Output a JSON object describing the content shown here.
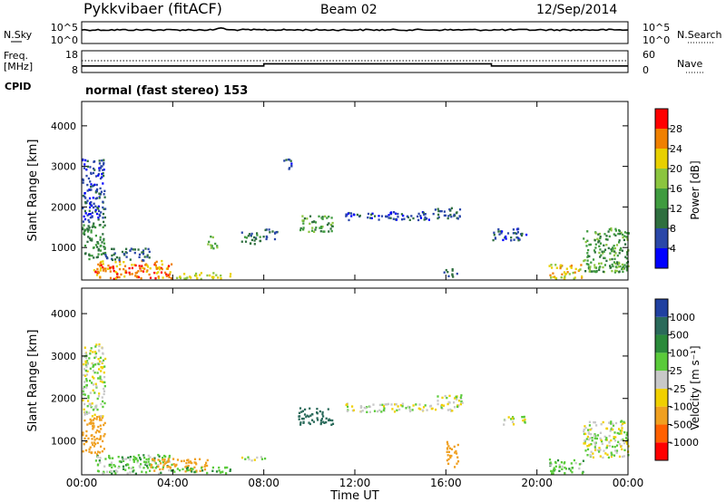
{
  "header": {
    "title": "Pykkvibaer (fitACF)",
    "beam": "Beam 02",
    "date": "12/Sep/2014"
  },
  "sky_panel": {
    "left_label": "N.Sky",
    "left_ticks": [
      "10^5",
      "10^0"
    ],
    "right_ticks": [
      "10^5",
      "10^0"
    ],
    "right_label": "N.Search"
  },
  "freq_panel": {
    "left_label_1": "Freq.",
    "left_label_2": "[MHz]",
    "left_ticks": [
      "18",
      "8"
    ],
    "right_ticks": [
      "60",
      "0"
    ],
    "right_label": "Nave",
    "freq_values": [
      11,
      11,
      11,
      11,
      11,
      11,
      11,
      11,
      11,
      11,
      11,
      11,
      11,
      11,
      11,
      11,
      12,
      12,
      12,
      12,
      12,
      12,
      12,
      12,
      12,
      12,
      12,
      12,
      12,
      12,
      12,
      12,
      12,
      12,
      12,
      12,
      11,
      11,
      11,
      11,
      11,
      11,
      11,
      11,
      11,
      11,
      11,
      11
    ],
    "nave_dotted_value": 38
  },
  "cpid": {
    "label": "CPID",
    "text": "normal (fast stereo) 153"
  },
  "x_axis": {
    "ticks": [
      "00:00",
      "04:00",
      "08:00",
      "12:00",
      "16:00",
      "20:00",
      "00:00"
    ],
    "label": "Time UT"
  },
  "chart_data": [
    {
      "type": "heatmap",
      "name": "power",
      "ylabel": "Slant Range [km]",
      "yticks": [
        "4000",
        "3000",
        "2000",
        "1000"
      ],
      "ylim": [
        200,
        4600
      ],
      "xlim_hours": [
        0,
        24
      ],
      "colorbar": {
        "label": "Power [dB]",
        "ticks": [
          "28",
          "24",
          "20",
          "16",
          "12",
          "8",
          "4"
        ],
        "colors": [
          "#0000ff",
          "#2a47a8",
          "#2f6f3f",
          "#3f9b3f",
          "#8bc53f",
          "#e8d000",
          "#f08000",
          "#ff0000"
        ]
      },
      "regions": [
        {
          "t": [
            0.0,
            1.0
          ],
          "r": [
            700,
            1600
          ],
          "v": 12
        },
        {
          "t": [
            0.0,
            1.0
          ],
          "r": [
            1600,
            3200
          ],
          "v": 6
        },
        {
          "t": [
            0.5,
            4.0
          ],
          "r": [
            250,
            700
          ],
          "v": 26
        },
        {
          "t": [
            1.0,
            3.0
          ],
          "r": [
            700,
            1000
          ],
          "v": 8
        },
        {
          "t": [
            4.0,
            6.5
          ],
          "r": [
            250,
            400
          ],
          "v": 20
        },
        {
          "t": [
            5.5,
            6.0
          ],
          "r": [
            1000,
            1300
          ],
          "v": 16
        },
        {
          "t": [
            7.0,
            8.0
          ],
          "r": [
            1100,
            1400
          ],
          "v": 10
        },
        {
          "t": [
            8.0,
            8.6
          ],
          "r": [
            1200,
            1500
          ],
          "v": 8
        },
        {
          "t": [
            9.5,
            11.0
          ],
          "r": [
            1400,
            1800
          ],
          "v": 14
        },
        {
          "t": [
            8.8,
            9.2
          ],
          "r": [
            2900,
            3200
          ],
          "v": 6
        },
        {
          "t": [
            11.5,
            15.5
          ],
          "r": [
            1700,
            1900
          ],
          "v": 6
        },
        {
          "t": [
            15.5,
            16.7
          ],
          "r": [
            1700,
            2000
          ],
          "v": 8
        },
        {
          "t": [
            18.0,
            19.5
          ],
          "r": [
            1200,
            1500
          ],
          "v": 6
        },
        {
          "t": [
            20.5,
            22.0
          ],
          "r": [
            250,
            600
          ],
          "v": 22
        },
        {
          "t": [
            22.0,
            24.0
          ],
          "r": [
            400,
            1500
          ],
          "v": 14
        },
        {
          "t": [
            15.8,
            16.5
          ],
          "r": [
            300,
            500
          ],
          "v": 8
        }
      ]
    },
    {
      "type": "heatmap",
      "name": "velocity",
      "ylabel": "Slant Range [km]",
      "yticks": [
        "4000",
        "3000",
        "2000",
        "1000"
      ],
      "ylim": [
        200,
        4600
      ],
      "xlim_hours": [
        0,
        24
      ],
      "colorbar": {
        "label": "Velocity [m s⁻¹]",
        "ticks": [
          "1000",
          "500",
          "100",
          "25",
          "-25",
          "-100",
          "-500",
          "-1000"
        ],
        "colors": [
          "#ff0000",
          "#ff6000",
          "#f0a020",
          "#f0d000",
          "#c8c8c8",
          "#5aca3a",
          "#2a8a3a",
          "#2a6a5a",
          "#2040a0"
        ]
      },
      "regions": [
        {
          "t": [
            0.0,
            1.0
          ],
          "r": [
            700,
            1600
          ],
          "v": -200
        },
        {
          "t": [
            0.0,
            1.0
          ],
          "r": [
            1600,
            3300
          ],
          "v": 0
        },
        {
          "t": [
            0.5,
            4.0
          ],
          "r": [
            250,
            700
          ],
          "v": 60
        },
        {
          "t": [
            3.0,
            5.5
          ],
          "r": [
            300,
            600
          ],
          "v": -300
        },
        {
          "t": [
            4.0,
            6.5
          ],
          "r": [
            250,
            400
          ],
          "v": 80
        },
        {
          "t": [
            7.0,
            8.2
          ],
          "r": [
            550,
            650
          ],
          "v": 0
        },
        {
          "t": [
            9.5,
            11.0
          ],
          "r": [
            1400,
            1800
          ],
          "v": 700
        },
        {
          "t": [
            11.5,
            15.5
          ],
          "r": [
            1700,
            1900
          ],
          "v": 0
        },
        {
          "t": [
            15.5,
            16.7
          ],
          "r": [
            1700,
            2100
          ],
          "v": 0
        },
        {
          "t": [
            18.5,
            19.5
          ],
          "r": [
            1400,
            1600
          ],
          "v": 0
        },
        {
          "t": [
            20.5,
            22.0
          ],
          "r": [
            250,
            600
          ],
          "v": 60
        },
        {
          "t": [
            22.0,
            24.0
          ],
          "r": [
            600,
            1500
          ],
          "v": 0
        },
        {
          "t": [
            16.0,
            16.5
          ],
          "r": [
            400,
            1000
          ],
          "v": -300
        }
      ]
    }
  ]
}
